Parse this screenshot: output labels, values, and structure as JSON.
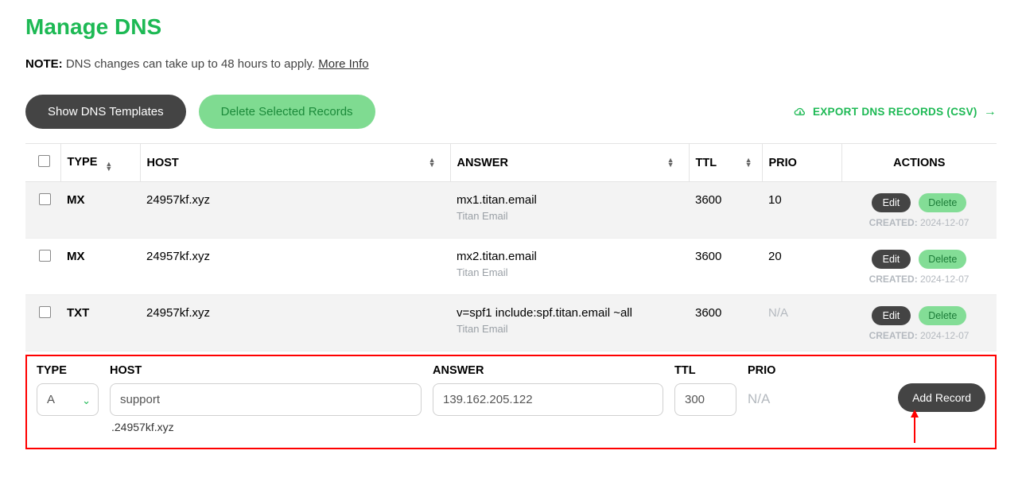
{
  "page": {
    "title": "Manage DNS",
    "note_label": "NOTE:",
    "note_text": " DNS changes can take up to 48 hours to apply. ",
    "more_info": "More Info"
  },
  "toolbar": {
    "show_templates": "Show DNS Templates",
    "delete_selected": "Delete Selected Records",
    "export_label": "EXPORT DNS RECORDS (CSV)"
  },
  "columns": {
    "type": "TYPE",
    "host": "HOST",
    "answer": "ANSWER",
    "ttl": "TTL",
    "prio": "PRIO",
    "actions": "ACTIONS"
  },
  "rows": [
    {
      "type": "MX",
      "host": "24957kf.xyz",
      "answer": "mx1.titan.email",
      "answer_sub": "Titan Email",
      "ttl": "3600",
      "prio": "10",
      "created_label": "CREATED:",
      "created_date": "2024-12-07",
      "edit": "Edit",
      "delete": "Delete"
    },
    {
      "type": "MX",
      "host": "24957kf.xyz",
      "answer": "mx2.titan.email",
      "answer_sub": "Titan Email",
      "ttl": "3600",
      "prio": "20",
      "created_label": "CREATED:",
      "created_date": "2024-12-07",
      "edit": "Edit",
      "delete": "Delete"
    },
    {
      "type": "TXT",
      "host": "24957kf.xyz",
      "answer": "v=spf1 include:spf.titan.email ~all",
      "answer_sub": "Titan Email",
      "ttl": "3600",
      "prio": "N/A",
      "created_label": "CREATED:",
      "created_date": "2024-12-07",
      "edit": "Edit",
      "delete": "Delete"
    }
  ],
  "add_row": {
    "labels": {
      "type": "TYPE",
      "host": "HOST",
      "answer": "ANSWER",
      "ttl": "TTL",
      "prio": "PRIO"
    },
    "type_value": "A",
    "host_value": "support",
    "host_suffix": ".24957kf.xyz",
    "answer_value": "139.162.205.122",
    "ttl_value": "300",
    "prio_value": "N/A",
    "button": "Add Record"
  },
  "colors": {
    "brand_green": "#1db954",
    "green_light": "#7fdb91",
    "dark_gray": "#444444",
    "muted": "#b4b9bf",
    "highlight_border": "#ff0000",
    "row_alt_bg": "#f3f3f3"
  }
}
